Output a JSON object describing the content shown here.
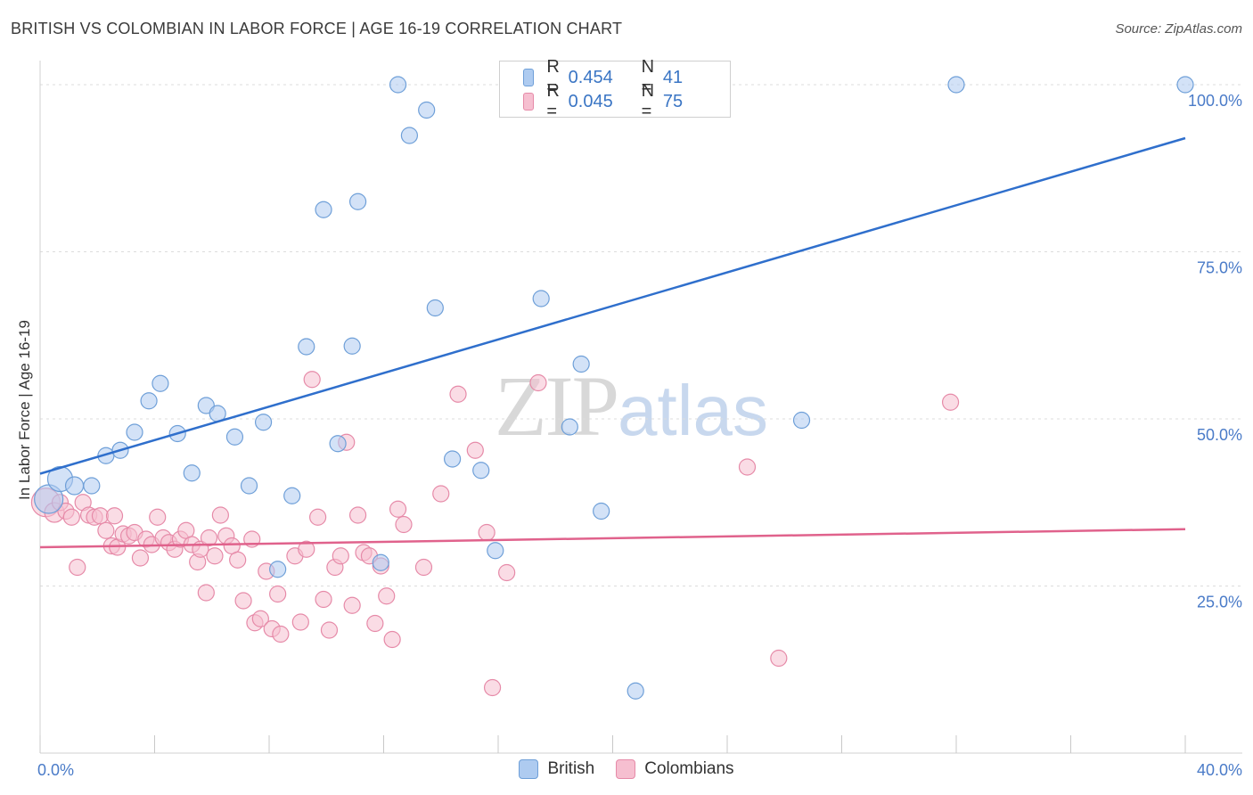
{
  "title": "BRITISH VS COLOMBIAN IN LABOR FORCE | AGE 16-19 CORRELATION CHART",
  "source": "Source: ZipAtlas.com",
  "watermark": {
    "zip": "ZIP",
    "atlas": "atlas"
  },
  "legend": {
    "british": {
      "r_label": "R =",
      "r_value": "0.454",
      "n_label": "N =",
      "n_value": "41"
    },
    "colombians": {
      "r_label": "R =",
      "r_value": "0.045",
      "n_label": "N =",
      "n_value": "75"
    }
  },
  "colors": {
    "british_fill": "#aecbf0",
    "british_stroke": "#6e9fd8",
    "british_line": "#2f6fcc",
    "colombian_fill": "#f6bfd0",
    "colombian_stroke": "#e68aa8",
    "colombian_line": "#e0628c"
  },
  "chart_data": {
    "type": "scatter",
    "title": "BRITISH VS COLOMBIAN IN LABOR FORCE | AGE 16-19 CORRELATION CHART",
    "xlabel": "",
    "ylabel": "In Labor Force | Age 16-19",
    "xlim": [
      0,
      40
    ],
    "ylim": [
      0,
      102
    ],
    "x_tick_labels": [
      "0.0%",
      "40.0%"
    ],
    "y_ticks": [
      25,
      50,
      75,
      100
    ],
    "y_tick_labels": [
      "25.0%",
      "50.0%",
      "75.0%",
      "100.0%"
    ],
    "legend_position": "bottom",
    "series": [
      {
        "name": "British",
        "trend": {
          "x": [
            0,
            40
          ],
          "y": [
            41.8,
            92.0
          ]
        },
        "points": [
          [
            0.3,
            38.0,
            16
          ],
          [
            0.7,
            41.0,
            14
          ],
          [
            1.2,
            40.0,
            10
          ],
          [
            1.8,
            40.0,
            9
          ],
          [
            2.3,
            44.5,
            9
          ],
          [
            2.8,
            45.3,
            9
          ],
          [
            3.3,
            48.0,
            9
          ],
          [
            3.8,
            52.7,
            9
          ],
          [
            4.2,
            55.3,
            9
          ],
          [
            4.8,
            47.8,
            9
          ],
          [
            5.3,
            41.9,
            9
          ],
          [
            5.8,
            52.0,
            9
          ],
          [
            6.2,
            50.8,
            9
          ],
          [
            6.8,
            47.3,
            9
          ],
          [
            7.3,
            40.0,
            9
          ],
          [
            7.8,
            49.5,
            9
          ],
          [
            8.3,
            27.5,
            9
          ],
          [
            8.8,
            38.5,
            9
          ],
          [
            9.3,
            60.8,
            9
          ],
          [
            9.9,
            81.3,
            9
          ],
          [
            10.4,
            46.3,
            9
          ],
          [
            10.9,
            60.9,
            9
          ],
          [
            11.1,
            82.5,
            9
          ],
          [
            11.9,
            28.5,
            9
          ],
          [
            12.5,
            100.0,
            9
          ],
          [
            12.9,
            92.4,
            9
          ],
          [
            13.5,
            96.2,
            9
          ],
          [
            13.8,
            66.6,
            9
          ],
          [
            14.4,
            44.0,
            9
          ],
          [
            15.4,
            42.3,
            9
          ],
          [
            15.9,
            30.3,
            9
          ],
          [
            17.5,
            68.0,
            9
          ],
          [
            18.5,
            48.8,
            9
          ],
          [
            18.9,
            58.2,
            9
          ],
          [
            19.6,
            36.2,
            9
          ],
          [
            20.8,
            9.3,
            9
          ],
          [
            26.6,
            49.8,
            9
          ],
          [
            32.0,
            100.0,
            9
          ],
          [
            40.0,
            100.0,
            9
          ]
        ]
      },
      {
        "name": "Colombians",
        "trend": {
          "x": [
            0,
            40
          ],
          "y": [
            30.8,
            33.5
          ]
        },
        "points": [
          [
            0.2,
            37.5,
            16
          ],
          [
            0.5,
            36.0,
            11
          ],
          [
            0.7,
            37.5,
            9
          ],
          [
            0.9,
            36.2,
            9
          ],
          [
            1.1,
            35.3,
            9
          ],
          [
            1.3,
            27.8,
            9
          ],
          [
            1.5,
            37.5,
            9
          ],
          [
            1.7,
            35.6,
            9
          ],
          [
            1.9,
            35.3,
            9
          ],
          [
            2.1,
            35.5,
            9
          ],
          [
            2.3,
            33.3,
            9
          ],
          [
            2.5,
            31.0,
            9
          ],
          [
            2.6,
            35.5,
            9
          ],
          [
            2.7,
            30.8,
            9
          ],
          [
            2.9,
            32.8,
            9
          ],
          [
            3.1,
            32.5,
            9
          ],
          [
            3.3,
            33.0,
            9
          ],
          [
            3.5,
            29.2,
            9
          ],
          [
            3.7,
            32.0,
            9
          ],
          [
            3.9,
            31.2,
            9
          ],
          [
            4.1,
            35.3,
            9
          ],
          [
            4.3,
            32.2,
            9
          ],
          [
            4.5,
            31.5,
            9
          ],
          [
            4.7,
            30.5,
            9
          ],
          [
            4.9,
            32.0,
            9
          ],
          [
            5.1,
            33.3,
            9
          ],
          [
            5.3,
            31.2,
            9
          ],
          [
            5.5,
            28.6,
            9
          ],
          [
            5.6,
            30.5,
            9
          ],
          [
            5.8,
            24.0,
            9
          ],
          [
            5.9,
            32.2,
            9
          ],
          [
            6.1,
            29.5,
            9
          ],
          [
            6.3,
            35.6,
            9
          ],
          [
            6.5,
            32.5,
            9
          ],
          [
            6.7,
            31.0,
            9
          ],
          [
            6.9,
            28.9,
            9
          ],
          [
            7.1,
            22.8,
            9
          ],
          [
            7.4,
            32.0,
            9
          ],
          [
            7.5,
            19.5,
            9
          ],
          [
            7.7,
            20.1,
            9
          ],
          [
            7.9,
            27.2,
            9
          ],
          [
            8.1,
            18.6,
            9
          ],
          [
            8.3,
            23.8,
            9
          ],
          [
            8.4,
            17.8,
            9
          ],
          [
            8.9,
            29.5,
            9
          ],
          [
            9.1,
            19.6,
            9
          ],
          [
            9.3,
            30.5,
            9
          ],
          [
            9.5,
            55.9,
            9
          ],
          [
            9.7,
            35.3,
            9
          ],
          [
            9.9,
            23.0,
            9
          ],
          [
            10.1,
            18.4,
            9
          ],
          [
            10.3,
            27.8,
            9
          ],
          [
            10.5,
            29.5,
            9
          ],
          [
            10.7,
            46.5,
            9
          ],
          [
            10.9,
            22.1,
            9
          ],
          [
            11.1,
            35.6,
            9
          ],
          [
            11.3,
            30.0,
            9
          ],
          [
            11.5,
            29.5,
            9
          ],
          [
            11.7,
            19.4,
            9
          ],
          [
            11.9,
            28.0,
            9
          ],
          [
            12.1,
            23.5,
            9
          ],
          [
            12.3,
            17.0,
            9
          ],
          [
            12.5,
            36.5,
            9
          ],
          [
            12.7,
            34.2,
            9
          ],
          [
            13.4,
            27.8,
            9
          ],
          [
            14.0,
            38.8,
            9
          ],
          [
            14.6,
            53.7,
            9
          ],
          [
            15.2,
            45.3,
            9
          ],
          [
            15.6,
            33.0,
            9
          ],
          [
            15.8,
            9.8,
            9
          ],
          [
            16.3,
            27.0,
            9
          ],
          [
            17.4,
            55.4,
            9
          ],
          [
            24.7,
            42.8,
            9
          ],
          [
            25.8,
            14.2,
            9
          ],
          [
            31.8,
            52.5,
            9
          ]
        ]
      }
    ]
  },
  "bottom_legend": {
    "british": "British",
    "colombians": "Colombians"
  }
}
